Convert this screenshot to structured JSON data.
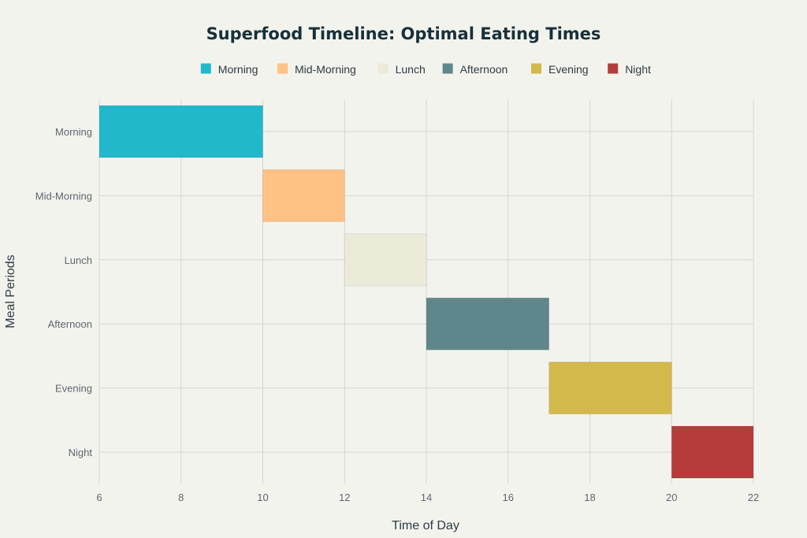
{
  "chart_data": {
    "type": "bar",
    "orientation": "horizontal-range",
    "title": "Superfood Timeline: Optimal Eating Times",
    "xlabel": "Time of Day",
    "ylabel": "Meal Periods",
    "xlim": [
      6,
      22
    ],
    "xticks": [
      6,
      8,
      10,
      12,
      14,
      16,
      18,
      20,
      22
    ],
    "grid": true,
    "legend_position": "top-center",
    "categories": [
      "Morning",
      "Mid-Morning",
      "Lunch",
      "Afternoon",
      "Evening",
      "Night"
    ],
    "series": [
      {
        "name": "Morning",
        "category": "Morning",
        "start": 6,
        "end": 10,
        "color": "#21b8cc"
      },
      {
        "name": "Mid-Morning",
        "category": "Mid-Morning",
        "start": 10,
        "end": 12,
        "color": "#ffc184"
      },
      {
        "name": "Lunch",
        "category": "Lunch",
        "start": 12,
        "end": 14,
        "color": "#ecebd9"
      },
      {
        "name": "Afternoon",
        "category": "Afternoon",
        "start": 14,
        "end": 17,
        "color": "#5f878b"
      },
      {
        "name": "Evening",
        "category": "Evening",
        "start": 17,
        "end": 20,
        "color": "#d3b94c"
      },
      {
        "name": "Night",
        "category": "Night",
        "start": 20,
        "end": 22,
        "color": "#b43d3b"
      }
    ]
  }
}
